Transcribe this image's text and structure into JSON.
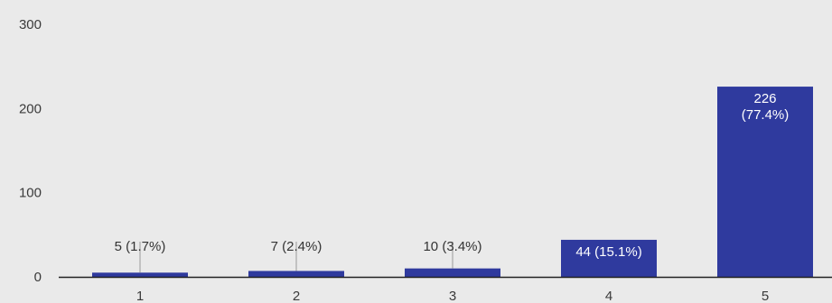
{
  "chart_data": {
    "type": "bar",
    "categories": [
      "1",
      "2",
      "3",
      "4",
      "5"
    ],
    "values": [
      5,
      7,
      10,
      44,
      226
    ],
    "data_labels": [
      [
        "5 (1.7%)"
      ],
      [
        "7 (2.4%)"
      ],
      [
        "10 (3.4%)"
      ],
      [
        "44 (15.1%)"
      ],
      [
        "226",
        "(77.4%)"
      ]
    ],
    "y_ticks": [
      "0",
      "100",
      "200",
      "300"
    ],
    "ylim": [
      0,
      300
    ],
    "title": "",
    "xlabel": "",
    "ylabel": "",
    "grid": false,
    "legend": false,
    "bar_color": "#2f3a9e",
    "label_inside_color": "#ffffff",
    "label_outside_color": "#333333",
    "axis_color": "#222222",
    "leader_color": "#9a9a9a",
    "background": "#eaeaea"
  }
}
